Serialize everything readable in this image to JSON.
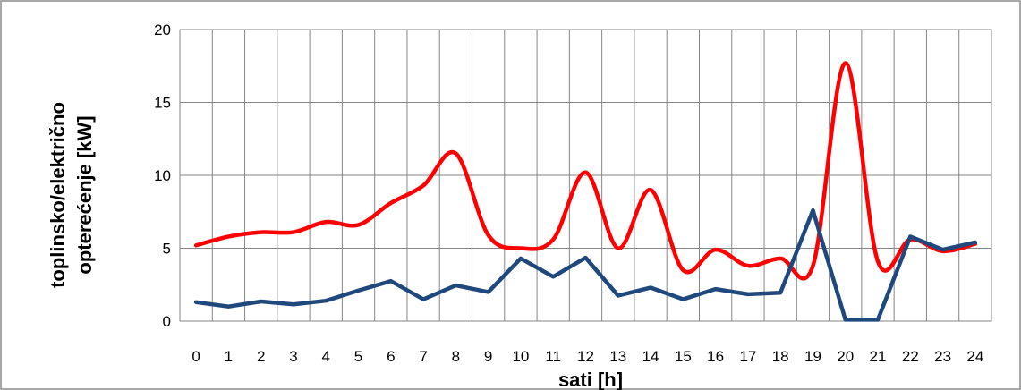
{
  "chart_data": {
    "type": "line",
    "xlabel": "sati [h]",
    "ylabel_line1": "toplinsko/električno",
    "ylabel_line2": "opterećenje [kW]",
    "x": [
      0,
      1,
      2,
      3,
      4,
      5,
      6,
      7,
      8,
      9,
      10,
      11,
      12,
      13,
      14,
      15,
      16,
      17,
      18,
      19,
      20,
      21,
      22,
      23,
      24
    ],
    "xlim": [
      -0.5,
      24.5
    ],
    "ylim": [
      0,
      20
    ],
    "yticks": [
      0,
      5,
      10,
      15,
      20
    ],
    "grid": true,
    "series": [
      {
        "color": "#ff0000",
        "smooth": true,
        "values": [
          5.2,
          5.8,
          6.1,
          6.1,
          6.8,
          6.6,
          8.1,
          9.3,
          11.5,
          5.9,
          5.0,
          5.6,
          10.2,
          5.0,
          9.0,
          3.5,
          4.9,
          3.8,
          4.3,
          3.8,
          17.7,
          4.1,
          5.6,
          4.8,
          5.3
        ]
      },
      {
        "color": "#1f497d",
        "smooth": false,
        "values": [
          1.3,
          1.0,
          1.35,
          1.15,
          1.4,
          2.1,
          2.75,
          1.5,
          2.45,
          2.0,
          4.3,
          3.05,
          4.35,
          1.75,
          2.3,
          1.5,
          2.2,
          1.85,
          1.95,
          7.6,
          0.1,
          0.1,
          5.8,
          4.9,
          5.4
        ]
      }
    ]
  }
}
